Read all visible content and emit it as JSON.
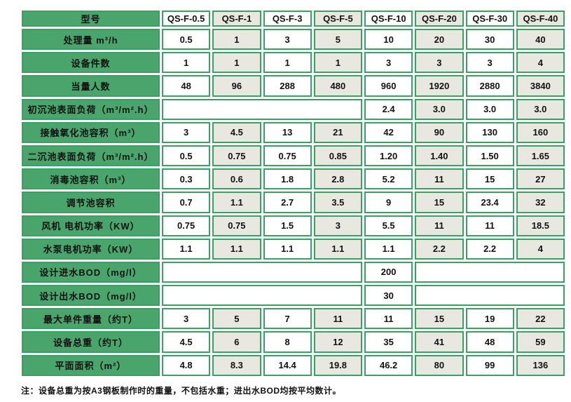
{
  "colors": {
    "label_green": "#4aa56c",
    "border_green": "#39a164",
    "alt_cell_beige": "#e9e8e0",
    "cell_white": "#ffffff",
    "label_text": "#ffffff",
    "data_text": "#111111"
  },
  "table": {
    "header": {
      "label": "型号",
      "models": [
        "QS-F-0.5",
        "QS-F-1",
        "QS-F-3",
        "QS-F-5",
        "QS-F-10",
        "QS-F-20",
        "QS-F-30",
        "QS-F-40"
      ]
    },
    "rows": [
      {
        "label": "处理量 m³/h",
        "cells": [
          "0.5",
          "1",
          "3",
          "5",
          "10",
          "20",
          "30",
          "40"
        ]
      },
      {
        "label": "设备件数",
        "cells": [
          "1",
          "1",
          "1",
          "1",
          "3",
          "3",
          "3",
          "4"
        ]
      },
      {
        "label": "当量人数",
        "cells": [
          "48",
          "96",
          "288",
          "480",
          "960",
          "1920",
          "2880",
          "3840"
        ]
      },
      {
        "label": "初沉池表面负荷（m³/m².h）",
        "cells": [
          {
            "text": "",
            "span": 4,
            "bg": "white"
          },
          "2.4",
          "3.0",
          "3.0",
          "3.0"
        ]
      },
      {
        "label": "接触氧化池容积（m³）",
        "cells": [
          "3",
          "4.5",
          "13",
          "21",
          "42",
          "90",
          "130",
          "160"
        ]
      },
      {
        "label": "二沉池表面负荷（m³/m².h）",
        "cells": [
          "0.5",
          "0.75",
          "0.75",
          "0.85",
          "1.20",
          "1.40",
          "1.50",
          "1.65"
        ]
      },
      {
        "label": "消毒池容积（m³）",
        "cells": [
          "0.3",
          "0.6",
          "1.8",
          "2.8",
          "5.2",
          "11",
          "15",
          "27"
        ]
      },
      {
        "label": "调节池容积",
        "cells": [
          "0.7",
          "1.1",
          "2.7",
          "3.5",
          "9",
          "15",
          "23.4",
          "32"
        ]
      },
      {
        "label": "风机 电机功率（KW）",
        "cells": [
          "0.75",
          "0.75",
          "1.5",
          "3",
          "5.5",
          "11",
          "11",
          "18.5"
        ]
      },
      {
        "label": "水泵电机功率（KW）",
        "cells": [
          "1.1",
          "1.1",
          "1.1",
          "1.1",
          "1.1",
          "2.2",
          "2.2",
          "4"
        ]
      },
      {
        "label": "设计进水BOD（mg/l）",
        "cells": [
          {
            "text": "",
            "span": 4,
            "bg": "white"
          },
          {
            "text": "200",
            "bg": "white"
          },
          {
            "text": "",
            "span": 3,
            "bg": "white"
          }
        ]
      },
      {
        "label": "设计出水BOD（mg/l）",
        "cells": [
          {
            "text": "",
            "span": 4,
            "bg": "white"
          },
          {
            "text": "30",
            "bg": "white"
          },
          {
            "text": "",
            "span": 3,
            "bg": "white"
          }
        ]
      },
      {
        "label": "最大单件重量（约T）",
        "cells": [
          "3",
          "5",
          "7",
          "11",
          "11",
          "15",
          "19",
          "22"
        ]
      },
      {
        "label": "设备总重（约T）",
        "cells": [
          "4.5",
          "6",
          "8",
          "12",
          "35",
          "41",
          "48",
          "59"
        ]
      },
      {
        "label": "平面面积（m²）",
        "cells": [
          "4.8",
          "8.3",
          "14.4",
          "19.8",
          "46.2",
          "80",
          "99",
          "136"
        ]
      }
    ]
  },
  "footnote": "注：设备总重为按A3钢板制作时的重量，不包括水重；进出水BOD均按平均数计。"
}
